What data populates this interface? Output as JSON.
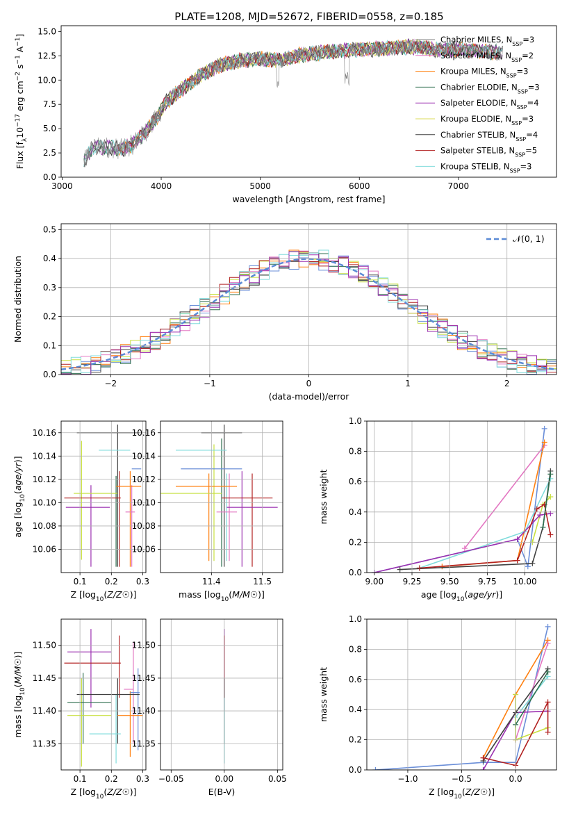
{
  "title": "PLATE=1208, MJD=52672, FIBERID=0558, z=0.185",
  "colors": {
    "Chabrier MILES": "#808080",
    "Salpeter MILES": "#e377c2",
    "Kroupa MILES": "#ff7f0e",
    "Chabrier ELODIE": "#2f6f4f",
    "Salpeter ELODIE": "#9b30b0",
    "Kroupa ELODIE": "#dbdb5a",
    "Chabrier STELIB": "#404040",
    "Salpeter STELIB": "#b22222",
    "Kroupa STELIB": "#80dcdc",
    "blue": "#6a8ed8",
    "yellow": "#c8e040"
  },
  "chart_data": [
    {
      "id": "spectrum",
      "type": "line",
      "title": "PLATE=1208, MJD=52672, FIBERID=0558, z=0.185",
      "xlabel": "wavelength [Angstrom, rest frame]",
      "ylabel": "Flux [f_λ 10^-17 erg cm^-2 s^-1 A^-1]",
      "xlim": [
        2990,
        7990
      ],
      "ylim": [
        0,
        15.6
      ],
      "xticks": [
        3000,
        4000,
        5000,
        6000,
        7000
      ],
      "yticks": [
        0.0,
        2.5,
        5.0,
        7.5,
        10.0,
        12.5,
        15.0
      ],
      "grid": false,
      "legend_position": "upper-right",
      "continuum": {
        "x": [
          3220,
          3300,
          3450,
          3600,
          3700,
          3800,
          3950,
          4050,
          4200,
          4400,
          4600,
          4800,
          5000,
          5200,
          5400,
          5600,
          5800,
          6000,
          6200,
          6400,
          6600,
          6800,
          7000,
          7200,
          7450
        ],
        "y": [
          1.5,
          3.0,
          3.1,
          2.9,
          3.3,
          4.2,
          6.0,
          7.8,
          9.0,
          10.5,
          11.6,
          12.0,
          12.2,
          12.0,
          12.6,
          12.8,
          13.0,
          13.2,
          13.2,
          13.4,
          13.4,
          13.1,
          13.2,
          13.0,
          12.8
        ]
      },
      "series": [
        {
          "name": "Chabrier MILES, N_SSP=3",
          "color_key": "Chabrier MILES"
        },
        {
          "name": "Salpeter MILES, N_SSP=2",
          "color_key": "Salpeter MILES"
        },
        {
          "name": "Kroupa MILES, N_SSP=3",
          "color_key": "Kroupa MILES"
        },
        {
          "name": "Chabrier ELODIE, N_SSP=3",
          "color_key": "Chabrier ELODIE"
        },
        {
          "name": "Salpeter ELODIE, N_SSP=4",
          "color_key": "Salpeter ELODIE"
        },
        {
          "name": "Kroupa ELODIE, N_SSP=3",
          "color_key": "Kroupa ELODIE"
        },
        {
          "name": "Chabrier STELIB, N_SSP=4",
          "color_key": "Chabrier STELIB"
        },
        {
          "name": "Salpeter STELIB, N_SSP=5",
          "color_key": "Salpeter STELIB"
        },
        {
          "name": "Kroupa STELIB, N_SSP=3",
          "color_key": "Kroupa STELIB"
        }
      ],
      "legend_labels": [
        "Chabrier MILES, N",
        "Salpeter MILES, N",
        "Kroupa MILES, N",
        "Chabrier ELODIE, N",
        "Salpeter ELODIE, N",
        "Kroupa ELODIE, N",
        "Chabrier STELIB, N",
        "Salpeter STELIB, N",
        "Kroupa STELIB, N"
      ],
      "legend_nssp": [
        "=3",
        "=2",
        "=3",
        "=3",
        "=4",
        "=3",
        "=4",
        "=5",
        "=3"
      ],
      "legend_subscript": "SSP"
    },
    {
      "id": "residuals",
      "type": "histogram",
      "xlabel": "(data-model)/error",
      "ylabel": "Normed distribution",
      "xlim": [
        -2.5,
        2.5
      ],
      "ylim": [
        0,
        0.52
      ],
      "xticks": [
        -2,
        -1,
        0,
        1,
        2
      ],
      "yticks": [
        0.0,
        0.1,
        0.2,
        0.3,
        0.4,
        0.5
      ],
      "grid": true,
      "legend": "𝒩(0, 1)",
      "legend_position": "upper-right",
      "reference_curve": "standard normal pdf",
      "bin_width": 0.1
    },
    {
      "id": "age-vs-Z",
      "type": "errorbar",
      "xlabel": "Z [log10(Z/Z☉)]",
      "ylabel": "age [log10(age/yr)]",
      "xlim": [
        0.04,
        0.31
      ],
      "ylim": [
        10.04,
        10.17
      ],
      "xticks": [
        0.1,
        0.2,
        0.3
      ],
      "yticks": [
        10.06,
        10.08,
        10.1,
        10.12,
        10.14,
        10.16
      ],
      "grid": true,
      "points": [
        {
          "color_key": "Chabrier STELIB",
          "x": 0.19,
          "y": 10.16,
          "xerr": 0.1,
          "yerr": 0.0
        },
        {
          "color_key": "Chabrier MILES",
          "x": 0.28,
          "y": 10.16,
          "xerr": 0.01,
          "yerr": 0.0
        },
        {
          "color_key": "Kroupa STELIB",
          "x": 0.21,
          "y": 10.145,
          "xerr": 0.05,
          "yerr": 0.0
        },
        {
          "color_key": "blue",
          "x": 0.28,
          "y": 10.129,
          "xerr": 0.015,
          "yerr": 0.059
        },
        {
          "color_key": "Kroupa MILES",
          "x": 0.255,
          "y": 10.114,
          "xerr": 0.04,
          "yerr": 0.0
        },
        {
          "color_key": "yellow",
          "x": 0.15,
          "y": 10.108,
          "xerr": 0.07,
          "yerr": 0.0
        },
        {
          "color_key": "Salpeter STELIB",
          "x": 0.14,
          "y": 10.104,
          "xerr": 0.09,
          "yerr": 0.0
        },
        {
          "color_key": "Salpeter ELODIE",
          "x": 0.125,
          "y": 10.096,
          "xerr": 0.07,
          "yerr": 0.0
        },
        {
          "color_key": "Salpeter MILES",
          "x": 0.26,
          "y": 10.092,
          "xerr": 0.015,
          "yerr": 0.0
        }
      ],
      "vlines": [
        {
          "color_key": "yellow",
          "x": 0.105,
          "y0": 10.051,
          "y1": 10.153
        },
        {
          "color_key": "Salpeter ELODIE",
          "x": 0.135,
          "y0": 10.045,
          "y1": 10.115
        },
        {
          "color_key": "Chabrier ELODIE",
          "x": 0.215,
          "y0": 10.045,
          "y1": 10.123
        },
        {
          "color_key": "Chabrier STELIB",
          "x": 0.22,
          "y0": 10.045,
          "y1": 10.167
        },
        {
          "color_key": "Salpeter STELIB",
          "x": 0.225,
          "y0": 10.045,
          "y1": 10.127
        },
        {
          "color_key": "Kroupa MILES",
          "x": 0.26,
          "y0": 10.045,
          "y1": 10.127
        },
        {
          "color_key": "Salpeter MILES",
          "x": 0.265,
          "y0": 10.045,
          "y1": 10.115
        }
      ]
    },
    {
      "id": "age-vs-mass",
      "type": "errorbar",
      "xlabel": "mass [log10(M/M☉)]",
      "ylabel": "",
      "xlim": [
        11.3,
        11.54
      ],
      "ylim": [
        10.04,
        10.17
      ],
      "xticks": [
        11.4,
        11.5
      ],
      "yticks": [
        10.06,
        10.08,
        10.1,
        10.12,
        10.14,
        10.16
      ],
      "grid": true,
      "points": [
        {
          "color_key": "Chabrier STELIB",
          "x": 11.42,
          "y": 10.16,
          "xerr": 0.04
        },
        {
          "color_key": "Kroupa STELIB",
          "x": 11.38,
          "y": 10.145,
          "xerr": 0.05
        },
        {
          "color_key": "blue",
          "x": 11.4,
          "y": 10.129,
          "xerr": 0.06
        },
        {
          "color_key": "Kroupa MILES",
          "x": 11.39,
          "y": 10.114,
          "xerr": 0.06
        },
        {
          "color_key": "yellow",
          "x": 11.36,
          "y": 10.108,
          "xerr": 0.06
        },
        {
          "color_key": "Salpeter STELIB",
          "x": 11.47,
          "y": 10.104,
          "xerr": 0.05
        },
        {
          "color_key": "Salpeter ELODIE",
          "x": 11.48,
          "y": 10.096,
          "xerr": 0.05
        },
        {
          "color_key": "Salpeter MILES",
          "x": 11.43,
          "y": 10.092,
          "xerr": 0.02
        }
      ],
      "vlines": [
        {
          "color_key": "Kroupa MILES",
          "x": 11.395,
          "y0": 10.05,
          "y1": 10.125
        },
        {
          "color_key": "yellow",
          "x": 11.405,
          "y0": 10.05,
          "y1": 10.15
        },
        {
          "color_key": "Chabrier ELODIE",
          "x": 11.42,
          "y0": 10.045,
          "y1": 10.155
        },
        {
          "color_key": "Chabrier STELIB",
          "x": 11.425,
          "y0": 10.045,
          "y1": 10.167
        },
        {
          "color_key": "Kroupa STELIB",
          "x": 11.43,
          "y0": 10.05,
          "y1": 10.125
        },
        {
          "color_key": "Salpeter MILES",
          "x": 11.435,
          "y0": 10.05,
          "y1": 10.125
        },
        {
          "color_key": "Salpeter ELODIE",
          "x": 11.46,
          "y0": 10.045,
          "y1": 10.127
        },
        {
          "color_key": "Salpeter STELIB",
          "x": 11.48,
          "y0": 10.045,
          "y1": 10.125
        }
      ]
    },
    {
      "id": "mass-weight-vs-age",
      "type": "line",
      "xlabel": "age [log10(age/yr)]",
      "ylabel": "mass weight",
      "xlim": [
        8.95,
        10.21
      ],
      "ylim": [
        0,
        1.0
      ],
      "xticks": [
        9.0,
        9.25,
        9.5,
        9.75,
        10.0
      ],
      "yticks": [
        0.0,
        0.2,
        0.4,
        0.6,
        0.8,
        1.0
      ],
      "grid": true,
      "series": [
        {
          "color_key": "blue",
          "x": [
            9.0,
            9.95,
            10.02,
            10.13
          ],
          "y": [
            0.0,
            0.22,
            0.04,
            0.95
          ]
        },
        {
          "color_key": "Salpeter MILES",
          "x": [
            9.6,
            10.13
          ],
          "y": [
            0.16,
            0.84
          ]
        },
        {
          "color_key": "Kroupa MILES",
          "x": [
            9.45,
            9.95,
            10.13
          ],
          "y": [
            0.04,
            0.08,
            0.86
          ]
        },
        {
          "color_key": "Kroupa STELIB",
          "x": [
            9.3,
            10.0,
            10.17
          ],
          "y": [
            0.03,
            0.27,
            0.62
          ]
        },
        {
          "color_key": "yellow",
          "x": [
            10.05,
            10.12,
            10.17
          ],
          "y": [
            0.2,
            0.45,
            0.5
          ]
        },
        {
          "color_key": "Salpeter ELODIE",
          "x": [
            9.0,
            9.95,
            10.1,
            10.17
          ],
          "y": [
            0.0,
            0.22,
            0.38,
            0.39
          ]
        },
        {
          "color_key": "Chabrier STELIB",
          "x": [
            9.17,
            10.05,
            10.12,
            10.17
          ],
          "y": [
            0.02,
            0.06,
            0.3,
            0.67
          ]
        },
        {
          "color_key": "Salpeter STELIB",
          "x": [
            9.3,
            9.95,
            10.08,
            10.13,
            10.17
          ],
          "y": [
            0.03,
            0.08,
            0.42,
            0.45,
            0.25
          ]
        },
        {
          "color_key": "Chabrier ELODIE",
          "x": [
            10.12,
            10.17
          ],
          "y": [
            0.3,
            0.65
          ]
        }
      ]
    },
    {
      "id": "mass-vs-Z",
      "type": "errorbar",
      "xlabel": "Z [log10(Z/Z☉)]",
      "ylabel": "mass [log10(M/M☉)]",
      "xlim": [
        0.04,
        0.31
      ],
      "ylim": [
        11.31,
        11.54
      ],
      "xticks": [
        0.1,
        0.2,
        0.3
      ],
      "yticks": [
        11.35,
        11.4,
        11.45,
        11.5
      ],
      "grid": true,
      "points": [
        {
          "color_key": "Salpeter STELIB",
          "x": 0.14,
          "y": 11.473,
          "xerr": 0.09
        },
        {
          "color_key": "Salpeter ELODIE",
          "x": 0.13,
          "y": 11.49,
          "xerr": 0.07
        },
        {
          "color_key": "Salpeter MILES",
          "x": 0.255,
          "y": 11.433,
          "xerr": 0.015
        },
        {
          "color_key": "Chabrier STELIB",
          "x": 0.19,
          "y": 11.425,
          "xerr": 0.1
        },
        {
          "color_key": "blue",
          "x": 0.275,
          "y": 11.428,
          "xerr": 0.015
        },
        {
          "color_key": "Chabrier ELODIE",
          "x": 0.13,
          "y": 11.413,
          "xerr": 0.07
        },
        {
          "color_key": "yellow",
          "x": 0.13,
          "y": 11.393,
          "xerr": 0.07
        },
        {
          "color_key": "Kroupa MILES",
          "x": 0.26,
          "y": 11.393,
          "xerr": 0.04
        },
        {
          "color_key": "Kroupa STELIB",
          "x": 0.18,
          "y": 11.365,
          "xerr": 0.05
        }
      ],
      "vlines": [
        {
          "color_key": "Chabrier ELODIE",
          "x": 0.11,
          "y0": 11.35,
          "y1": 11.458
        },
        {
          "color_key": "yellow",
          "x": 0.105,
          "y0": 11.315,
          "y1": 11.45
        },
        {
          "color_key": "Salpeter ELODIE",
          "x": 0.135,
          "y0": 11.405,
          "y1": 11.525
        },
        {
          "color_key": "Salpeter STELIB",
          "x": 0.225,
          "y0": 11.42,
          "y1": 11.515
        },
        {
          "color_key": "Kroupa STELIB",
          "x": 0.215,
          "y0": 11.32,
          "y1": 11.425
        },
        {
          "color_key": "Chabrier STELIB",
          "x": 0.22,
          "y0": 11.35,
          "y1": 11.45
        },
        {
          "color_key": "Kroupa MILES",
          "x": 0.26,
          "y0": 11.33,
          "y1": 11.43
        },
        {
          "color_key": "Salpeter MILES",
          "x": 0.27,
          "y0": 11.35,
          "y1": 11.505
        },
        {
          "color_key": "blue",
          "x": 0.285,
          "y0": 11.34,
          "y1": 11.465
        }
      ]
    },
    {
      "id": "mass-vs-EBV",
      "type": "errorbar",
      "xlabel": "E(B-V)",
      "ylabel": "",
      "xlim": [
        -0.06,
        0.055
      ],
      "ylim": [
        11.31,
        11.54
      ],
      "xticks": [
        -0.05,
        0.0,
        0.05
      ],
      "yticks": [
        11.35,
        11.4,
        11.45,
        11.5
      ],
      "grid": true,
      "vlines": [
        {
          "color_key": "Salpeter ELODIE",
          "x": 0.0,
          "y0": 11.4,
          "y1": 11.525
        },
        {
          "color_key": "Salpeter STELIB",
          "x": 0.0,
          "y0": 11.42,
          "y1": 11.515
        },
        {
          "color_key": "Chabrier STELIB",
          "x": 0.0,
          "y0": 11.35,
          "y1": 11.45
        },
        {
          "color_key": "Kroupa STELIB",
          "x": 0.0,
          "y0": 11.32,
          "y1": 11.42
        }
      ]
    },
    {
      "id": "mass-weight-vs-Z",
      "type": "line",
      "xlabel": "Z [log10(Z/Z☉)]",
      "ylabel": "mass weight",
      "xlim": [
        -1.38,
        0.38
      ],
      "ylim": [
        0,
        1.0
      ],
      "xticks": [
        -1.0,
        -0.5,
        0.0
      ],
      "yticks": [
        0.0,
        0.2,
        0.4,
        0.6,
        0.8,
        1.0
      ],
      "grid": true,
      "series": [
        {
          "color_key": "blue",
          "x": [
            -1.3,
            -0.3,
            0.0,
            0.3
          ],
          "y": [
            0.0,
            0.05,
            0.05,
            0.95
          ]
        },
        {
          "color_key": "Kroupa MILES",
          "x": [
            -0.3,
            0.0,
            0.3
          ],
          "y": [
            0.08,
            0.5,
            0.86
          ]
        },
        {
          "color_key": "Salpeter MILES",
          "x": [
            0.0,
            0.3
          ],
          "y": [
            0.2,
            0.84
          ]
        },
        {
          "color_key": "Kroupa STELIB",
          "x": [
            0.0,
            0.3
          ],
          "y": [
            0.35,
            0.62
          ]
        },
        {
          "color_key": "yellow",
          "x": [
            0.0,
            0.0,
            0.3
          ],
          "y": [
            0.5,
            0.2,
            0.28
          ]
        },
        {
          "color_key": "Salpeter ELODIE",
          "x": [
            -0.3,
            0.0,
            0.3
          ],
          "y": [
            0.0,
            0.38,
            0.39
          ]
        },
        {
          "color_key": "Chabrier STELIB",
          "x": [
            -0.3,
            0.0,
            0.3
          ],
          "y": [
            0.06,
            0.38,
            0.67
          ]
        },
        {
          "color_key": "Salpeter STELIB",
          "x": [
            -0.3,
            0.0,
            0.3,
            0.3
          ],
          "y": [
            0.08,
            0.03,
            0.45,
            0.25
          ]
        },
        {
          "color_key": "Chabrier ELODIE",
          "x": [
            0.0,
            0.3
          ],
          "y": [
            0.3,
            0.65
          ]
        }
      ]
    }
  ]
}
